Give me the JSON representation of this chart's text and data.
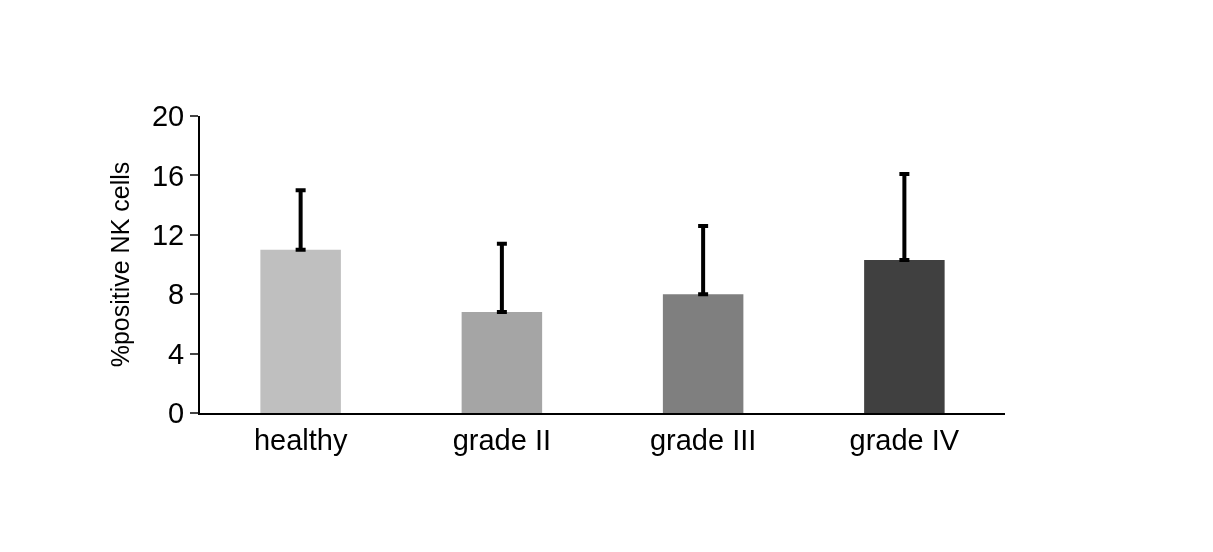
{
  "chart_data": {
    "type": "bar",
    "ylabel": "%positive NK cells",
    "categories": [
      "healthy",
      "grade II",
      "grade III",
      "grade IV"
    ],
    "values": [
      11.0,
      6.8,
      8.0,
      10.3
    ],
    "colors": [
      "#bfbfbf",
      "#a5a5a5",
      "#7f7f7f",
      "#404040"
    ],
    "errors": [
      [
        11.0,
        15.0
      ],
      [
        6.8,
        11.4
      ],
      [
        8.0,
        12.6
      ],
      [
        10.3,
        16.1
      ]
    ],
    "ylim": [
      0,
      20
    ],
    "yticks": [
      0,
      4,
      8,
      12,
      16,
      20
    ]
  }
}
